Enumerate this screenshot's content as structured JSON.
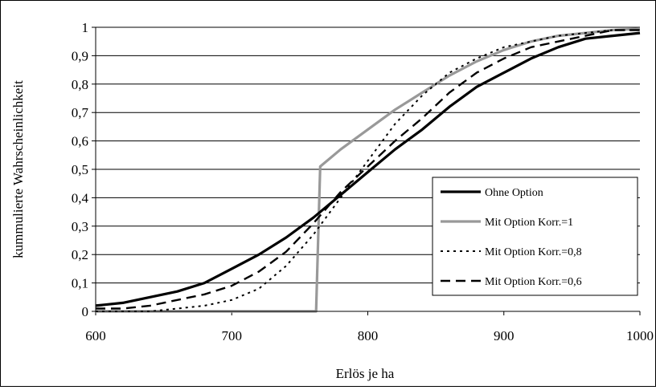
{
  "chart_data": {
    "type": "line",
    "title": "",
    "xlabel": "Erlös je ha",
    "ylabel": "kummulierte Wahrscheinlichkeit",
    "xlim": [
      600,
      1000
    ],
    "ylim": [
      0,
      1
    ],
    "x_ticks": [
      "600",
      "700",
      "800",
      "900",
      "1000"
    ],
    "y_ticks": [
      "0",
      "0,1",
      "0,2",
      "0,3",
      "0,4",
      "0,5",
      "0,6",
      "0,7",
      "0,8",
      "0,9",
      "1"
    ],
    "grid": "horizontal",
    "legend_position": "bottom-right",
    "series": [
      {
        "name": "Ohne Option",
        "color": "#000000",
        "style": "solid-thick",
        "points": [
          [
            600,
            0.02
          ],
          [
            620,
            0.03
          ],
          [
            640,
            0.05
          ],
          [
            660,
            0.07
          ],
          [
            680,
            0.1
          ],
          [
            700,
            0.15
          ],
          [
            720,
            0.2
          ],
          [
            740,
            0.26
          ],
          [
            760,
            0.33
          ],
          [
            780,
            0.41
          ],
          [
            800,
            0.49
          ],
          [
            820,
            0.57
          ],
          [
            840,
            0.64
          ],
          [
            860,
            0.72
          ],
          [
            880,
            0.79
          ],
          [
            900,
            0.84
          ],
          [
            920,
            0.89
          ],
          [
            940,
            0.93
          ],
          [
            960,
            0.96
          ],
          [
            980,
            0.97
          ],
          [
            1000,
            0.98
          ]
        ]
      },
      {
        "name": "Mit Option Korr.=1",
        "color": "#999999",
        "style": "solid-thick",
        "points": [
          [
            600,
            0.0
          ],
          [
            762,
            0.0
          ],
          [
            765,
            0.51
          ],
          [
            780,
            0.57
          ],
          [
            800,
            0.64
          ],
          [
            820,
            0.71
          ],
          [
            840,
            0.77
          ],
          [
            860,
            0.83
          ],
          [
            880,
            0.88
          ],
          [
            900,
            0.92
          ],
          [
            920,
            0.95
          ],
          [
            940,
            0.97
          ],
          [
            960,
            0.98
          ],
          [
            980,
            0.99
          ],
          [
            1000,
            0.995
          ]
        ]
      },
      {
        "name": "Mit Option Korr.=0,8",
        "color": "#000000",
        "style": "dotted",
        "points": [
          [
            600,
            0.0
          ],
          [
            640,
            0.0
          ],
          [
            660,
            0.01
          ],
          [
            680,
            0.02
          ],
          [
            700,
            0.04
          ],
          [
            720,
            0.08
          ],
          [
            740,
            0.16
          ],
          [
            760,
            0.27
          ],
          [
            780,
            0.4
          ],
          [
            800,
            0.53
          ],
          [
            820,
            0.66
          ],
          [
            840,
            0.76
          ],
          [
            860,
            0.84
          ],
          [
            880,
            0.89
          ],
          [
            900,
            0.93
          ],
          [
            920,
            0.95
          ],
          [
            940,
            0.97
          ],
          [
            960,
            0.98
          ],
          [
            980,
            0.99
          ],
          [
            1000,
            0.99
          ]
        ]
      },
      {
        "name": "Mit Option Korr.=0,6",
        "color": "#000000",
        "style": "dashed",
        "points": [
          [
            600,
            0.01
          ],
          [
            620,
            0.01
          ],
          [
            640,
            0.02
          ],
          [
            660,
            0.04
          ],
          [
            680,
            0.06
          ],
          [
            700,
            0.09
          ],
          [
            720,
            0.14
          ],
          [
            740,
            0.21
          ],
          [
            760,
            0.31
          ],
          [
            780,
            0.42
          ],
          [
            800,
            0.51
          ],
          [
            820,
            0.6
          ],
          [
            840,
            0.68
          ],
          [
            860,
            0.77
          ],
          [
            880,
            0.84
          ],
          [
            900,
            0.89
          ],
          [
            920,
            0.93
          ],
          [
            940,
            0.95
          ],
          [
            960,
            0.97
          ],
          [
            980,
            0.99
          ],
          [
            1000,
            0.99
          ]
        ]
      }
    ]
  }
}
